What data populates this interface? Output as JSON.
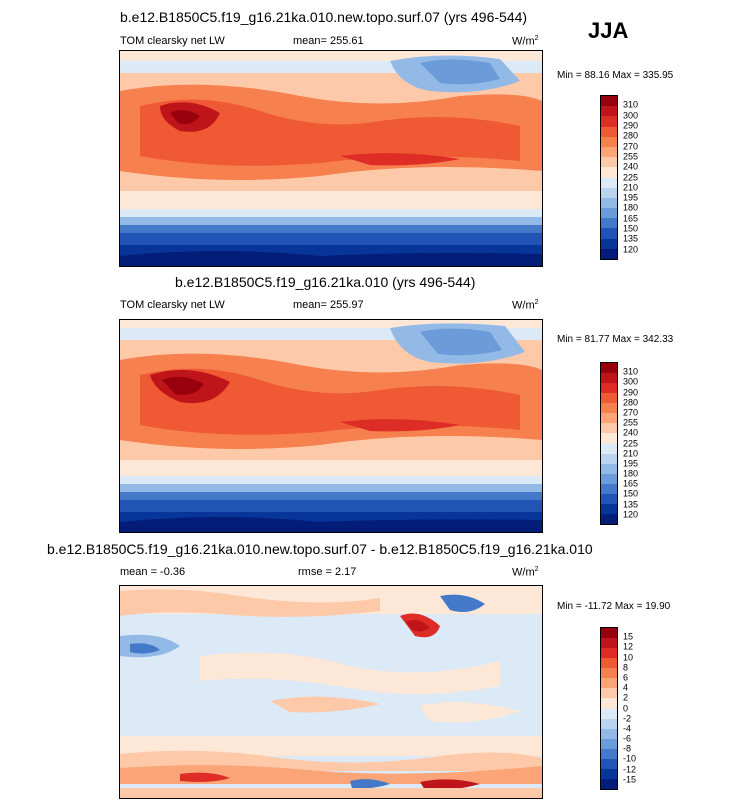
{
  "season": "JJA",
  "panels": [
    {
      "title": "b.e12.B1850C5.f19_g16.21ka.010.new.topo.surf.07 (yrs 496-544)",
      "left_label": "TOM clearsky net LW",
      "mean_text": "mean= 255.61",
      "rmse_text": "",
      "units_text": "W/m",
      "units_sup": "2",
      "minmax": "Min =  88.16 Max = 335.95"
    },
    {
      "title": "b.e12.B1850C5.f19_g16.21ka.010 (yrs 496-544)",
      "left_label": "TOM clearsky net LW",
      "mean_text": "mean= 255.97",
      "rmse_text": "",
      "units_text": "W/m",
      "units_sup": "2",
      "minmax": "Min =  81.77 Max = 342.33"
    },
    {
      "title": "b.e12.B1850C5.f19_g16.21ka.010.new.topo.surf.07 - b.e12.B1850C5.f19_g16.21ka.010",
      "left_label": "",
      "mean_text": "mean =  -0.36",
      "rmse_text": "rmse =   2.17",
      "units_text": "W/m",
      "units_sup": "2",
      "minmax": "Min = -11.72 Max =  19.90"
    }
  ],
  "chart_data": [
    {
      "type": "heatmap",
      "title": "b.e12.B1850C5.f19_g16.21ka.010.new.topo.surf.07 (yrs 496-544)",
      "variable": "TOM clearsky net LW",
      "units": "W/m2",
      "mean": 255.61,
      "min": 88.16,
      "max": 335.95,
      "colorbar_levels": [
        310,
        300,
        290,
        280,
        270,
        255,
        240,
        225,
        210,
        195,
        180,
        165,
        150,
        135,
        120
      ],
      "colorbar_colors": [
        "#99000d",
        "#c0141b",
        "#de2d26",
        "#ef5a35",
        "#f6804e",
        "#fba478",
        "#fdc9a8",
        "#fde8d8",
        "#dce9f6",
        "#bad3ee",
        "#93bae6",
        "#6b9bd8",
        "#4478c9",
        "#2154b5",
        "#08359a",
        "#031d78"
      ]
    },
    {
      "type": "heatmap",
      "title": "b.e12.B1850C5.f19_g16.21ka.010 (yrs 496-544)",
      "variable": "TOM clearsky net LW",
      "units": "W/m2",
      "mean": 255.97,
      "min": 81.77,
      "max": 342.33,
      "colorbar_levels": [
        310,
        300,
        290,
        280,
        270,
        255,
        240,
        225,
        210,
        195,
        180,
        165,
        150,
        135,
        120
      ],
      "colorbar_colors": [
        "#99000d",
        "#c0141b",
        "#de2d26",
        "#ef5a35",
        "#f6804e",
        "#fba478",
        "#fdc9a8",
        "#fde8d8",
        "#dce9f6",
        "#bad3ee",
        "#93bae6",
        "#6b9bd8",
        "#4478c9",
        "#2154b5",
        "#08359a",
        "#031d78"
      ]
    },
    {
      "type": "heatmap",
      "title": "b.e12.B1850C5.f19_g16.21ka.010.new.topo.surf.07 - b.e12.B1850C5.f19_g16.21ka.010",
      "units": "W/m2",
      "mean": -0.36,
      "rmse": 2.17,
      "min": -11.72,
      "max": 19.9,
      "colorbar_levels": [
        15,
        12,
        10,
        8,
        6,
        4,
        2,
        0,
        -2,
        -4,
        -6,
        -8,
        -10,
        -12,
        -15
      ],
      "colorbar_colors": [
        "#99000d",
        "#c0141b",
        "#de2d26",
        "#ef5a35",
        "#f6804e",
        "#fba478",
        "#fdc9a8",
        "#fde8d8",
        "#dce9f6",
        "#bad3ee",
        "#93bae6",
        "#6b9bd8",
        "#4478c9",
        "#2154b5",
        "#08359a",
        "#031d78"
      ]
    }
  ]
}
